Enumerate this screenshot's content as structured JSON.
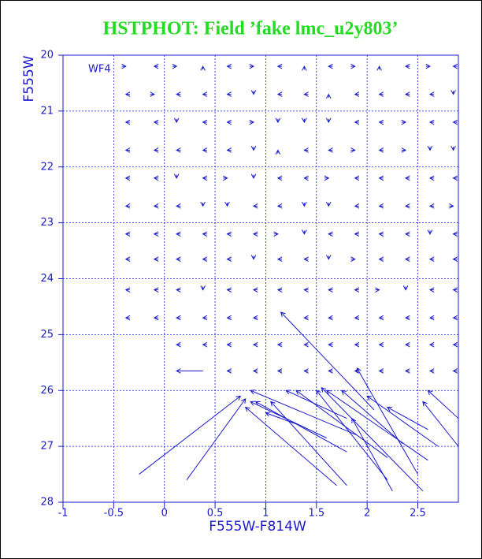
{
  "chart_data": {
    "type": "quiver",
    "title": "HSTPHOT: Field ’fake lmc_u2y803’",
    "annotation": "WF4",
    "x_label": "F555W-F814W",
    "y_label": "F555W",
    "xlim": [
      -1,
      2.9
    ],
    "ylim": [
      28,
      20
    ],
    "xticks": [
      -1,
      -0.5,
      0,
      0.5,
      1,
      1.5,
      2,
      2.5
    ],
    "yticks": [
      20,
      21,
      22,
      23,
      24,
      25,
      26,
      27,
      28
    ],
    "grid": true,
    "color": "#1a1acc",
    "arrows": {
      "x": [
        -0.38,
        -0.1,
        0.12,
        0.38,
        0.62,
        0.88,
        1.12,
        1.38,
        1.62,
        1.88,
        2.12,
        2.38,
        2.62,
        2.85,
        -0.38,
        -0.1,
        0.12,
        0.38,
        0.62,
        0.88,
        1.12,
        1.38,
        1.62,
        1.88,
        2.12,
        2.38,
        2.62,
        2.85,
        -0.38,
        -0.1,
        0.12,
        0.38,
        0.62,
        0.88,
        1.12,
        1.38,
        1.62,
        1.88,
        2.12,
        2.38,
        2.62,
        2.85,
        -0.38,
        -0.1,
        0.12,
        0.38,
        0.62,
        0.88,
        1.12,
        1.38,
        1.62,
        1.88,
        2.12,
        2.38,
        2.62,
        2.85,
        -0.38,
        -0.1,
        0.12,
        0.38,
        0.62,
        0.88,
        1.12,
        1.38,
        1.62,
        1.88,
        2.12,
        2.38,
        2.62,
        2.85,
        -0.38,
        -0.1,
        0.12,
        0.38,
        0.62,
        0.88,
        1.12,
        1.38,
        1.62,
        1.88,
        2.12,
        2.38,
        2.62,
        2.85,
        -0.38,
        -0.1,
        0.12,
        0.38,
        0.62,
        0.88,
        1.12,
        1.38,
        1.62,
        1.88,
        2.12,
        2.38,
        2.62,
        2.85,
        -0.38,
        -0.1,
        0.12,
        0.38,
        0.62,
        0.88,
        1.12,
        1.38,
        1.62,
        1.88,
        2.12,
        2.38,
        2.62,
        2.85,
        -0.38,
        -0.1,
        0.12,
        0.38,
        0.62,
        0.88,
        1.12,
        1.38,
        1.62,
        1.88,
        2.12,
        2.38,
        2.62,
        2.85,
        -0.38,
        -0.1,
        0.12,
        0.38,
        0.62,
        0.88,
        1.38,
        1.62,
        1.88,
        2.12,
        2.38,
        2.62,
        2.85,
        0.12,
        0.38,
        0.62,
        0.88,
        1.12,
        1.38,
        1.62,
        1.88,
        2.12,
        2.38,
        2.62,
        2.85,
        0.62,
        0.88,
        1.12,
        1.38,
        1.62,
        1.88,
        2.12,
        2.38,
        2.62,
        2.85,
        0.75,
        0.8,
        0.9,
        0.85,
        1.05,
        0.85,
        1.0,
        1.3,
        1.5,
        1.55,
        1.6,
        1.75,
        1.85,
        1.9,
        2.0,
        2.2,
        2.55,
        2.6,
        1.2,
        0.8,
        1.15,
        0.12
      ],
      "y": [
        20.2,
        20.2,
        20.2,
        20.2,
        20.2,
        20.2,
        20.2,
        20.2,
        20.2,
        20.2,
        20.2,
        20.2,
        20.2,
        20.2,
        20.7,
        20.7,
        20.7,
        20.7,
        20.7,
        20.7,
        20.7,
        20.7,
        20.7,
        20.7,
        20.7,
        20.7,
        20.7,
        20.7,
        21.2,
        21.2,
        21.2,
        21.2,
        21.2,
        21.2,
        21.2,
        21.2,
        21.2,
        21.2,
        21.2,
        21.2,
        21.2,
        21.2,
        21.7,
        21.7,
        21.7,
        21.7,
        21.7,
        21.7,
        21.7,
        21.7,
        21.7,
        21.7,
        21.7,
        21.7,
        21.7,
        21.7,
        22.2,
        22.2,
        22.2,
        22.2,
        22.2,
        22.2,
        22.2,
        22.2,
        22.2,
        22.2,
        22.2,
        22.2,
        22.2,
        22.2,
        22.7,
        22.7,
        22.7,
        22.7,
        22.7,
        22.7,
        22.7,
        22.7,
        22.7,
        22.7,
        22.7,
        22.7,
        22.7,
        22.7,
        23.2,
        23.2,
        23.2,
        23.2,
        23.2,
        23.2,
        23.2,
        23.2,
        23.2,
        23.2,
        23.2,
        23.2,
        23.2,
        23.2,
        23.65,
        23.65,
        23.65,
        23.65,
        23.65,
        23.65,
        23.65,
        23.65,
        23.65,
        23.65,
        23.65,
        23.65,
        23.65,
        23.65,
        24.2,
        24.2,
        24.2,
        24.2,
        24.2,
        24.2,
        24.2,
        24.2,
        24.2,
        24.2,
        24.2,
        24.2,
        24.2,
        24.2,
        24.7,
        24.7,
        24.7,
        24.7,
        24.7,
        24.7,
        24.7,
        24.7,
        24.7,
        24.7,
        24.7,
        24.7,
        24.7,
        25.18,
        25.18,
        25.18,
        25.18,
        25.18,
        25.18,
        25.18,
        25.18,
        25.18,
        25.18,
        25.18,
        25.18,
        25.65,
        25.65,
        25.65,
        25.65,
        25.65,
        25.65,
        25.65,
        25.65,
        25.65,
        25.65,
        26.1,
        26.15,
        26.2,
        26.0,
        26.2,
        26.2,
        26.4,
        26.0,
        26.0,
        25.95,
        26.0,
        26.0,
        26.5,
        25.6,
        26.1,
        26.3,
        26.2,
        26.0,
        26.0,
        26.3,
        24.6,
        25.65
      ],
      "x_tail": [
        -0.42,
        -0.06,
        0.08,
        0.38,
        0.66,
        0.84,
        1.16,
        1.38,
        1.66,
        1.84,
        2.12,
        2.42,
        2.58,
        2.89,
        -0.34,
        -0.14,
        0.16,
        0.42,
        0.66,
        0.88,
        1.16,
        1.42,
        1.62,
        1.92,
        2.16,
        2.42,
        2.66,
        2.85,
        -0.34,
        -0.06,
        0.12,
        0.42,
        0.66,
        0.84,
        1.12,
        1.38,
        1.62,
        1.92,
        2.16,
        2.34,
        2.66,
        2.89,
        -0.34,
        -0.06,
        0.16,
        0.42,
        0.66,
        0.88,
        1.12,
        1.42,
        1.66,
        1.84,
        2.16,
        2.34,
        2.62,
        2.85,
        -0.34,
        -0.06,
        0.12,
        0.42,
        0.58,
        0.88,
        1.16,
        1.42,
        1.58,
        1.92,
        2.16,
        2.42,
        2.66,
        2.89,
        -0.34,
        -0.06,
        0.16,
        0.38,
        0.62,
        0.92,
        1.16,
        1.38,
        1.62,
        1.92,
        2.16,
        2.42,
        2.66,
        2.81,
        -0.34,
        -0.06,
        0.16,
        0.42,
        0.66,
        0.92,
        1.08,
        1.38,
        1.66,
        1.92,
        2.16,
        2.42,
        2.62,
        2.89,
        -0.34,
        -0.06,
        0.16,
        0.42,
        0.66,
        0.88,
        1.16,
        1.42,
        1.62,
        1.84,
        2.16,
        2.42,
        2.66,
        2.89,
        -0.34,
        -0.06,
        0.16,
        0.38,
        0.66,
        0.92,
        1.16,
        1.42,
        1.66,
        1.92,
        2.08,
        2.38,
        2.66,
        2.89,
        -0.34,
        -0.06,
        0.16,
        0.42,
        0.66,
        0.92,
        1.42,
        1.66,
        1.92,
        2.16,
        2.42,
        2.66,
        2.89,
        0.16,
        0.42,
        0.66,
        0.92,
        1.16,
        1.42,
        1.66,
        1.92,
        2.16,
        2.42,
        2.66,
        2.89,
        0.66,
        0.92,
        1.16,
        1.42,
        1.66,
        1.92,
        2.16,
        2.42,
        2.66,
        2.89,
        -0.25,
        0.22,
        1.8,
        1.9,
        1.8,
        1.6,
        1.3,
        2.2,
        2.2,
        2.55,
        2.6,
        2.35,
        2.25,
        2.5,
        2.7,
        2.6,
        2.9,
        2.9,
        1.8,
        1.7,
        2.07,
        0.38
      ],
      "y_tail": [
        20.2,
        20.2,
        20.2,
        20.26,
        20.2,
        20.2,
        20.2,
        20.26,
        20.2,
        20.2,
        20.26,
        20.2,
        20.2,
        20.2,
        20.7,
        20.7,
        20.7,
        20.7,
        20.7,
        20.64,
        20.7,
        20.7,
        20.76,
        20.7,
        20.7,
        20.7,
        20.7,
        20.64,
        21.2,
        21.2,
        21.14,
        21.2,
        21.2,
        21.2,
        21.14,
        21.14,
        21.14,
        21.2,
        21.2,
        21.2,
        21.2,
        21.2,
        21.7,
        21.7,
        21.7,
        21.7,
        21.7,
        21.64,
        21.76,
        21.7,
        21.7,
        21.7,
        21.7,
        21.7,
        21.64,
        21.64,
        22.2,
        22.2,
        22.14,
        22.2,
        22.2,
        22.14,
        22.2,
        22.2,
        22.2,
        22.2,
        22.2,
        22.2,
        22.2,
        22.2,
        22.7,
        22.7,
        22.7,
        22.64,
        22.64,
        22.7,
        22.7,
        22.64,
        22.64,
        22.7,
        22.7,
        22.7,
        22.7,
        22.7,
        23.2,
        23.2,
        23.2,
        23.2,
        23.2,
        23.2,
        23.2,
        23.14,
        23.2,
        23.2,
        23.2,
        23.2,
        23.14,
        23.2,
        23.65,
        23.65,
        23.65,
        23.65,
        23.65,
        23.59,
        23.65,
        23.65,
        23.59,
        23.65,
        23.65,
        23.65,
        23.65,
        23.65,
        24.2,
        24.2,
        24.2,
        24.14,
        24.2,
        24.2,
        24.2,
        24.2,
        24.2,
        24.2,
        24.2,
        24.14,
        24.2,
        24.2,
        24.7,
        24.7,
        24.7,
        24.7,
        24.7,
        24.7,
        24.7,
        24.7,
        24.7,
        24.7,
        24.7,
        24.7,
        24.7,
        25.18,
        25.18,
        25.18,
        25.18,
        25.18,
        25.18,
        25.18,
        25.18,
        25.18,
        25.18,
        25.18,
        25.18,
        25.65,
        25.65,
        25.65,
        25.65,
        25.65,
        25.65,
        25.65,
        25.65,
        25.65,
        25.65,
        27.5,
        27.6,
        27.1,
        26.8,
        27.7,
        26.85,
        26.6,
        27.2,
        27.6,
        27.8,
        27.25,
        26.95,
        27.8,
        27.5,
        27.0,
        26.7,
        27.0,
        26.5,
        26.5,
        27.7,
        26.35,
        25.65
      ]
    }
  }
}
